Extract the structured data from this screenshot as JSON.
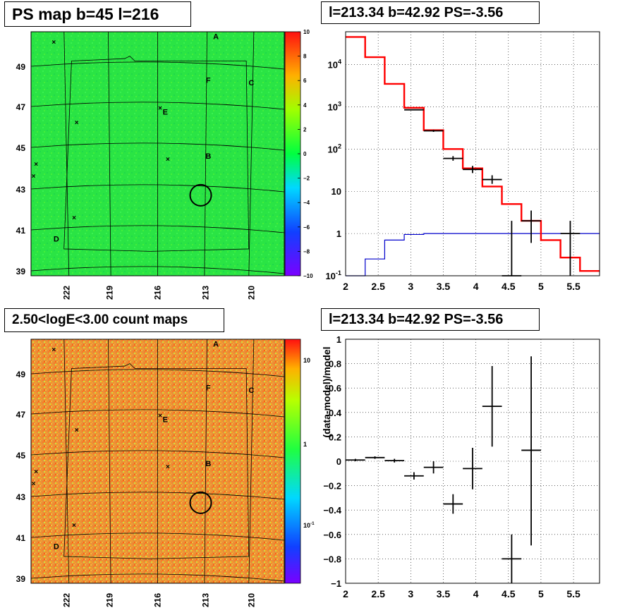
{
  "panels": {
    "ps_map": {
      "title": "PS map b=45 l=216"
    },
    "spectrum": {
      "title": "l=213.34 b=42.92 PS=-3.56"
    },
    "count_map": {
      "title": "2.50<logE<3.00 count maps"
    },
    "residual": {
      "title": "l=213.34 b=42.92 PS=-3.56"
    }
  },
  "colors": {
    "data": "#000000",
    "model": "#ff0000",
    "background_model": "#0000cc",
    "ps_map_field": "#22e040",
    "count_map_field": "#e8903a",
    "marker_circle": "#000000"
  },
  "chart_data": [
    {
      "type": "heatmap",
      "name": "ps_map",
      "colorbar_ticks": [
        "10",
        "8",
        "6",
        "4",
        "2",
        "0",
        "−2",
        "−4",
        "−6",
        "−8",
        "−10"
      ],
      "zlim": [
        -10,
        10
      ],
      "lon_ticks": [
        "222",
        "219",
        "216",
        "213",
        "210"
      ],
      "lat_ticks": [
        "49",
        "47",
        "45",
        "43",
        "41",
        "39"
      ],
      "source_labels": [
        "A",
        "F",
        "C",
        "E",
        "B",
        "D"
      ],
      "circle": {
        "l": 213.34,
        "b": 42.92
      }
    },
    {
      "type": "line",
      "name": "spectrum",
      "yscale": "log",
      "xlim": [
        2,
        5.9
      ],
      "ylim": [
        0.1,
        60000
      ],
      "x_ticks": [
        "2",
        "2.5",
        "3",
        "3.5",
        "4",
        "4.5",
        "5",
        "5.5"
      ],
      "y_ticks": [
        "10^-1",
        "1",
        "10",
        "10^2",
        "10^3",
        "10^4"
      ],
      "grid": true,
      "model_bins": {
        "edges": [
          2.0,
          2.3,
          2.6,
          2.9,
          3.2,
          3.5,
          3.8,
          4.1,
          4.4,
          4.7,
          5.0,
          5.3,
          5.6,
          5.9
        ],
        "values": [
          45000,
          15000,
          3500,
          950,
          280,
          100,
          35,
          13,
          5,
          2,
          0.7,
          0.27,
          0.13
        ]
      },
      "background_bins": {
        "edges": [
          2.0,
          2.3,
          2.6,
          2.9,
          3.2,
          3.5,
          3.8,
          4.1,
          4.4,
          4.7,
          5.0,
          5.3,
          5.6,
          5.9
        ],
        "values": [
          0.001,
          0.25,
          0.7,
          0.95,
          1.0,
          1.0,
          1.0,
          1.0,
          1.0,
          1.0,
          1.0,
          1.0,
          1.0
        ]
      },
      "data_points": [
        {
          "x": 3.05,
          "y": 850,
          "xerr": 0.15,
          "ylo": 850,
          "yhi": 850
        },
        {
          "x": 3.35,
          "y": 270,
          "xerr": 0.15,
          "ylo": 255,
          "yhi": 285
        },
        {
          "x": 3.65,
          "y": 60,
          "xerr": 0.15,
          "ylo": 53,
          "yhi": 68
        },
        {
          "x": 3.95,
          "y": 33,
          "xerr": 0.15,
          "ylo": 27,
          "yhi": 40
        },
        {
          "x": 4.25,
          "y": 19,
          "xerr": 0.15,
          "ylo": 15,
          "yhi": 24
        },
        {
          "x": 4.55,
          "y": 0.1,
          "xerr": 0.15,
          "ylo": 0.1,
          "yhi": 2
        },
        {
          "x": 4.85,
          "y": 2,
          "xerr": 0.15,
          "ylo": 0.6,
          "yhi": 3.5
        },
        {
          "x": 5.45,
          "y": 1,
          "xerr": 0.15,
          "ylo": 0.1,
          "yhi": 2
        }
      ]
    },
    {
      "type": "heatmap",
      "name": "count_map",
      "colorbar_ticks": [
        "10",
        "1",
        "10^-1"
      ],
      "zscale": "log",
      "lon_ticks": [
        "222",
        "219",
        "216",
        "213",
        "210"
      ],
      "lat_ticks": [
        "49",
        "47",
        "45",
        "43",
        "41",
        "39"
      ],
      "source_labels": [
        "A",
        "F",
        "C",
        "E",
        "B",
        "D"
      ],
      "circle": {
        "l": 213.34,
        "b": 42.92
      }
    },
    {
      "type": "scatter",
      "name": "residual",
      "ylabel": "(data-model)/model",
      "xlim": [
        2,
        5.9
      ],
      "ylim": [
        -1,
        1
      ],
      "x_ticks": [
        "2",
        "2.5",
        "3",
        "3.5",
        "4",
        "4.5",
        "5",
        "5.5"
      ],
      "y_ticks": [
        "1",
        "0.8",
        "0.6",
        "0.4",
        "0.2",
        "0",
        "−0.2",
        "−0.4",
        "−0.6",
        "−0.8",
        "−1"
      ],
      "grid": true,
      "points": [
        {
          "x": 2.15,
          "y": 0.01,
          "xerr": 0.15,
          "ylo": 0.0,
          "yhi": 0.02
        },
        {
          "x": 2.45,
          "y": 0.03,
          "xerr": 0.15,
          "ylo": 0.02,
          "yhi": 0.04
        },
        {
          "x": 2.75,
          "y": 0.005,
          "xerr": 0.15,
          "ylo": -0.01,
          "yhi": 0.02
        },
        {
          "x": 3.05,
          "y": -0.12,
          "xerr": 0.15,
          "ylo": -0.15,
          "yhi": -0.09
        },
        {
          "x": 3.35,
          "y": -0.05,
          "xerr": 0.15,
          "ylo": -0.1,
          "yhi": 0.0
        },
        {
          "x": 3.65,
          "y": -0.35,
          "xerr": 0.15,
          "ylo": -0.43,
          "yhi": -0.27
        },
        {
          "x": 3.95,
          "y": -0.06,
          "xerr": 0.15,
          "ylo": -0.23,
          "yhi": 0.11
        },
        {
          "x": 4.25,
          "y": 0.45,
          "xerr": 0.15,
          "ylo": 0.12,
          "yhi": 0.78
        },
        {
          "x": 4.55,
          "y": -0.8,
          "xerr": 0.15,
          "ylo": -1.0,
          "yhi": -0.6
        },
        {
          "x": 4.85,
          "y": 0.09,
          "xerr": 0.15,
          "ylo": -0.69,
          "yhi": 0.86
        }
      ]
    }
  ]
}
